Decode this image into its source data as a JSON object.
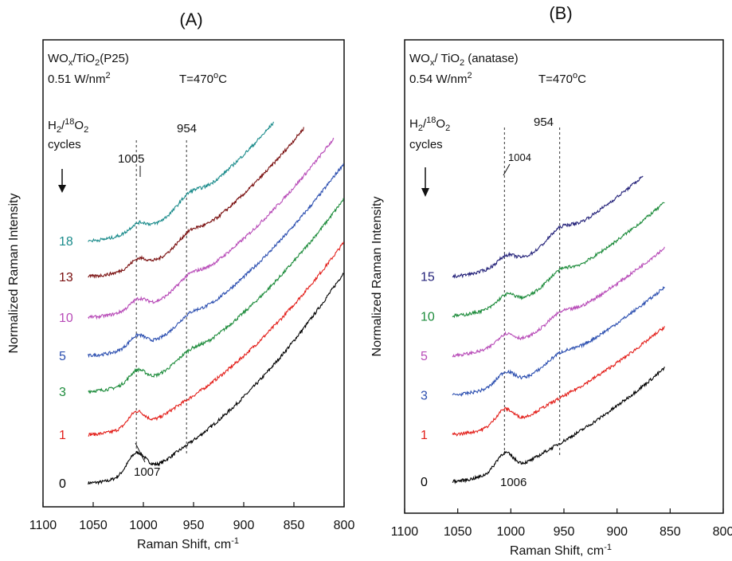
{
  "chart_data": [
    {
      "id": "A",
      "type": "line",
      "title": "(A)",
      "xlabel": "Raman Shift, cm-1",
      "ylabel": "Normalized Raman Intensity",
      "xlim": [
        1100,
        800
      ],
      "x_reversed": true,
      "xticks": [
        "1100",
        "1050",
        "1000",
        "950",
        "900",
        "850",
        "800"
      ],
      "grid": false,
      "info_lines": {
        "catalyst": "WOx/TiO2(P25)",
        "power": "0.51 W/nm2",
        "temperature": "T=470oC",
        "gas": "H2/18O2",
        "cycles_label": "cycles"
      },
      "peak_labels": [
        "1005",
        "954",
        "1007"
      ],
      "dashed_lines_x": [
        1007,
        957
      ],
      "series": [
        {
          "name": "0",
          "color": "#000000",
          "x_range": [
            1055,
            800
          ],
          "start": 0.0,
          "peaks": [
            {
              "x": 1007,
              "h": 0.4,
              "w": 9
            }
          ],
          "slope": 1.15
        },
        {
          "name": "1",
          "color": "#e3201b",
          "x_range": [
            1055,
            800
          ],
          "start": 0.95,
          "peaks": [
            {
              "x": 1007,
              "h": 0.28,
              "w": 8
            }
          ],
          "slope": 1.05
        },
        {
          "name": "3",
          "color": "#1e8c3c",
          "x_range": [
            1055,
            800
          ],
          "start": 1.8,
          "peaks": [
            {
              "x": 1006,
              "h": 0.24,
              "w": 8
            },
            {
              "x": 954,
              "h": 0.1,
              "w": 10
            }
          ],
          "slope": 1.05
        },
        {
          "name": "5",
          "color": "#2c4fb0",
          "x_range": [
            1055,
            800
          ],
          "start": 2.5,
          "peaks": [
            {
              "x": 1006,
              "h": 0.22,
              "w": 8
            },
            {
              "x": 954,
              "h": 0.12,
              "w": 10
            }
          ],
          "slope": 1.05
        },
        {
          "name": "10",
          "color": "#b84cb8",
          "x_range": [
            1055,
            810
          ],
          "start": 3.25,
          "peaks": [
            {
              "x": 1005,
              "h": 0.18,
              "w": 8
            },
            {
              "x": 954,
              "h": 0.14,
              "w": 10
            }
          ],
          "slope": 1.05
        },
        {
          "name": "13",
          "color": "#7a1010",
          "x_range": [
            1055,
            840
          ],
          "start": 4.05,
          "peaks": [
            {
              "x": 1005,
              "h": 0.16,
              "w": 8
            },
            {
              "x": 954,
              "h": 0.15,
              "w": 10
            }
          ],
          "slope": 1.1
        },
        {
          "name": "18",
          "color": "#1c8c8c",
          "x_range": [
            1055,
            870
          ],
          "start": 4.75,
          "peaks": [
            {
              "x": 1005,
              "h": 0.15,
              "w": 8
            },
            {
              "x": 954,
              "h": 0.17,
              "w": 10
            }
          ],
          "slope": 1.15
        }
      ]
    },
    {
      "id": "B",
      "type": "line",
      "title": "(B)",
      "xlabel": "Raman Shift, cm-1",
      "ylabel": "Normalized Raman Intensity",
      "xlim": [
        1100,
        800
      ],
      "x_reversed": true,
      "xticks": [
        "1100",
        "1050",
        "1000",
        "950",
        "900",
        "850",
        "800"
      ],
      "grid": false,
      "info_lines": {
        "catalyst": "WOx/ TiO2 (anatase)",
        "power": "0.54 W/nm2",
        "temperature": "T=470oC",
        "gas": "H2/18O2",
        "cycles_label": "cycles"
      },
      "peak_labels": [
        "954",
        "1004",
        "1006"
      ],
      "dashed_lines_x": [
        1006,
        954
      ],
      "series": [
        {
          "name": "0",
          "color": "#000000",
          "x_range": [
            1055,
            855
          ],
          "start": 0.0,
          "peaks": [
            {
              "x": 1006,
              "h": 0.35,
              "w": 8
            }
          ],
          "slope": 1.0
        },
        {
          "name": "1",
          "color": "#e3201b",
          "x_range": [
            1055,
            855
          ],
          "start": 0.95,
          "peaks": [
            {
              "x": 1006,
              "h": 0.3,
              "w": 8
            }
          ],
          "slope": 0.95
        },
        {
          "name": "3",
          "color": "#2c4fb0",
          "x_range": [
            1055,
            855
          ],
          "start": 1.75,
          "peaks": [
            {
              "x": 1005,
              "h": 0.25,
              "w": 8
            },
            {
              "x": 954,
              "h": 0.12,
              "w": 10
            }
          ],
          "slope": 0.95
        },
        {
          "name": "5",
          "color": "#b84cb8",
          "x_range": [
            1055,
            855
          ],
          "start": 2.55,
          "peaks": [
            {
              "x": 1005,
              "h": 0.22,
              "w": 8
            },
            {
              "x": 954,
              "h": 0.14,
              "w": 10
            }
          ],
          "slope": 0.95
        },
        {
          "name": "10",
          "color": "#1e8c3c",
          "x_range": [
            1055,
            855
          ],
          "start": 3.35,
          "peaks": [
            {
              "x": 1004,
              "h": 0.2,
              "w": 8
            },
            {
              "x": 954,
              "h": 0.16,
              "w": 10
            }
          ],
          "slope": 1.0
        },
        {
          "name": "15",
          "color": "#25237a",
          "x_range": [
            1055,
            875
          ],
          "start": 4.15,
          "peaks": [
            {
              "x": 1004,
              "h": 0.18,
              "w": 8
            },
            {
              "x": 954,
              "h": 0.18,
              "w": 10
            }
          ],
          "slope": 1.05
        }
      ]
    }
  ]
}
